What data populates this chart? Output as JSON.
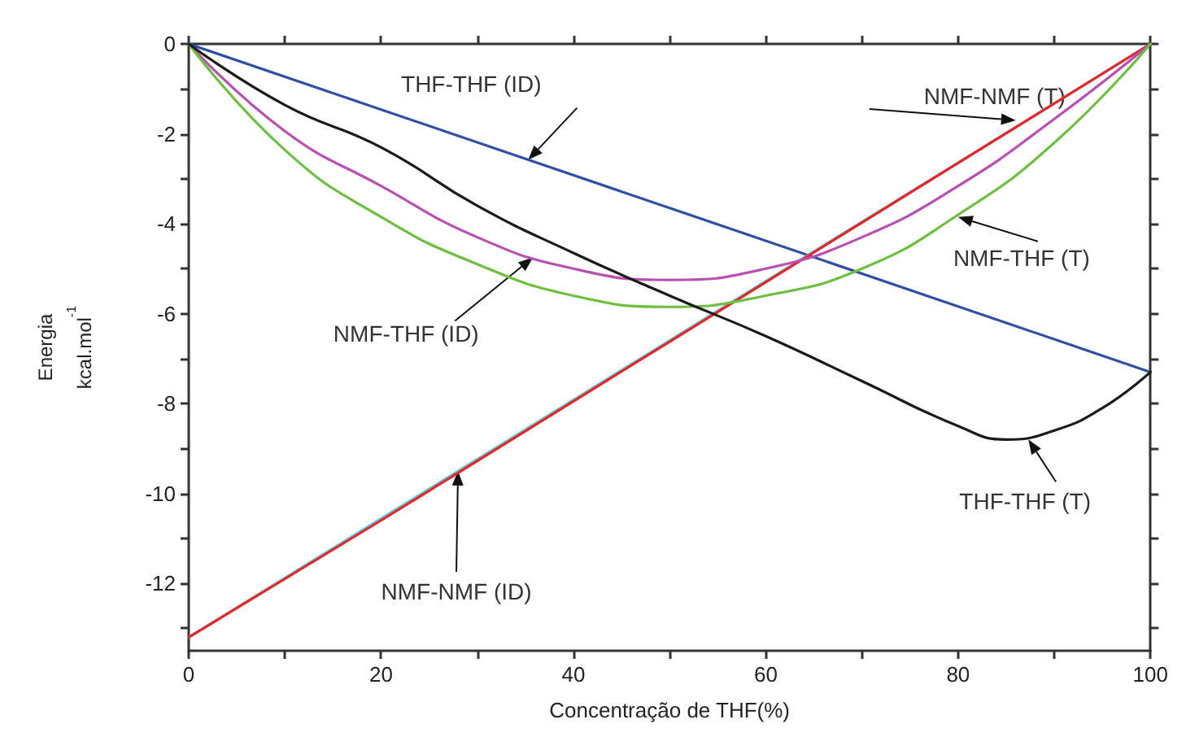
{
  "chart_data": {
    "type": "line",
    "xlabel": "Concentração de THF(%)",
    "ylabel": "Energia\nkcal.mol$^{-1}$",
    "xlim": [
      0,
      100
    ],
    "ylim": [
      -13.5,
      0
    ],
    "xticks": [
      0,
      {
        "value": 10,
        "label": null
      },
      20,
      {
        "value": 30,
        "label": null
      },
      40,
      {
        "value": 50,
        "label": null
      },
      60,
      {
        "value": 70,
        "label": null
      },
      80,
      {
        "value": 90,
        "label": null
      },
      100
    ],
    "yticks": [
      {
        "value": -13,
        "label": null
      },
      -12,
      {
        "value": -11,
        "label": null
      },
      -10,
      {
        "value": -9,
        "label": null
      },
      -8,
      {
        "value": -7,
        "label": null
      },
      -6,
      {
        "value": -5,
        "label": null
      },
      -4,
      {
        "value": -3,
        "label": null
      },
      -2,
      {
        "value": -1,
        "label": null
      },
      0
    ],
    "grid": false,
    "marker": "none",
    "line_style": "solid",
    "x": [
      0,
      10,
      20,
      30,
      40,
      50,
      60,
      70,
      80,
      90,
      100
    ],
    "series": [
      {
        "color": "#2e4fa3",
        "x": [
          0,
          100
        ],
        "values": [
          0,
          -7.3
        ]
      },
      {
        "color": "#5bc8e0",
        "x": [
          0,
          100
        ],
        "values": [
          -13.2,
          0
        ]
      },
      {
        "color": "#e8262a",
        "x": [
          0,
          20,
          40,
          60,
          80,
          100
        ],
        "values": [
          -13.2,
          -10.6,
          -7.95,
          -5.3,
          -2.65,
          0
        ]
      },
      {
        "color": "#b94fb0",
        "values": [
          0,
          -1.94,
          -3.16,
          -4.3,
          -5.0,
          -5.25,
          -5.0,
          -4.3,
          -3.16,
          -1.67,
          0
        ]
      },
      {
        "color": "#6cbf3f",
        "values": [
          0,
          -2.36,
          -3.85,
          -4.9,
          -5.6,
          -5.85,
          -5.6,
          -5.0,
          -3.8,
          -2.2,
          0
        ]
      },
      {
        "color": "#1a1a1a",
        "x": [
          0,
          10,
          20,
          30,
          40,
          50,
          60,
          70,
          80,
          85,
          90,
          95,
          100
        ],
        "values": [
          0,
          -1.36,
          -2.3,
          -3.6,
          -4.65,
          -5.6,
          -6.5,
          -7.5,
          -8.5,
          -8.8,
          -8.6,
          -8.1,
          -7.3
        ]
      }
    ],
    "annotations": [
      {
        "text": "THF-THF (ID)",
        "x": 35.3,
        "y": -2.58
      },
      {
        "text": "NMF-NMF (T)",
        "x": 86,
        "y": -1.7
      },
      {
        "text": "NMF-THF (T)",
        "x": 80,
        "y": -3.85
      },
      {
        "text": "NMF-THF (ID)",
        "x": 35.8,
        "y": -4.75
      },
      {
        "text": "THF-THF (T)",
        "x": 87.3,
        "y": -8.8
      },
      {
        "text": "NMF-NMF (ID)",
        "x": 28,
        "y": -9.5
      }
    ]
  }
}
